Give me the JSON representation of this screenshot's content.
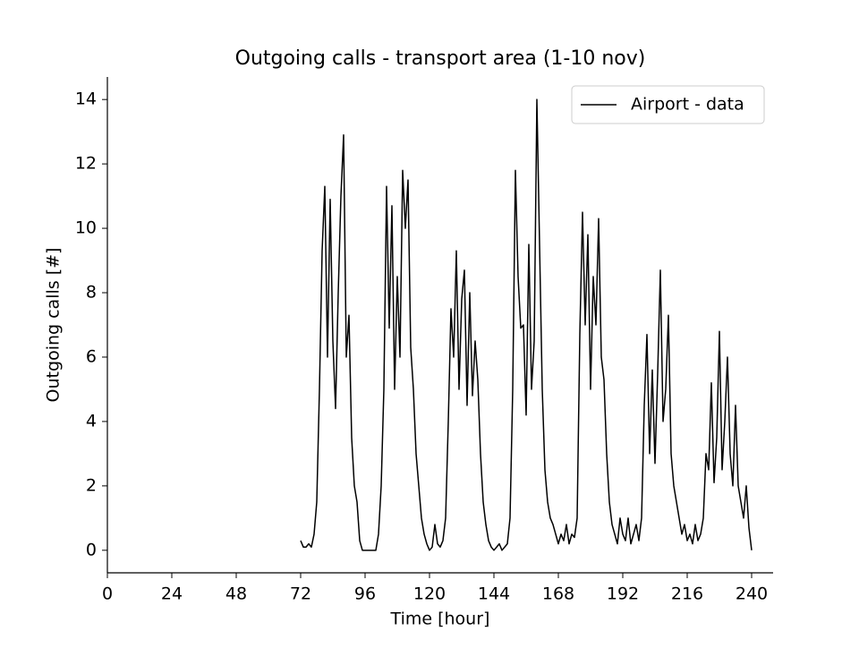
{
  "chart_data": {
    "type": "line",
    "title": "Outgoing calls - transport area (1-10 nov)",
    "x_label": "Time [hour]",
    "y_label": "Outgoing calls [#]",
    "x": [
      72,
      73,
      74,
      75,
      76,
      77,
      78,
      79,
      80,
      81,
      82,
      83,
      84,
      85,
      86,
      87,
      88,
      89,
      90,
      91,
      92,
      93,
      94,
      95,
      96,
      97,
      98,
      99,
      100,
      101,
      102,
      103,
      104,
      105,
      106,
      107,
      108,
      109,
      110,
      111,
      112,
      113,
      114,
      115,
      116,
      117,
      118,
      119,
      120,
      121,
      122,
      123,
      124,
      125,
      126,
      127,
      128,
      129,
      130,
      131,
      132,
      133,
      134,
      135,
      136,
      137,
      138,
      139,
      140,
      141,
      142,
      143,
      144,
      145,
      146,
      147,
      148,
      149,
      150,
      151,
      152,
      153,
      154,
      155,
      156,
      157,
      158,
      159,
      160,
      161,
      162,
      163,
      164,
      165,
      166,
      167,
      168,
      169,
      170,
      171,
      172,
      173,
      174,
      175,
      176,
      177,
      178,
      179,
      180,
      181,
      182,
      183,
      184,
      185,
      186,
      187,
      188,
      189,
      190,
      191,
      192,
      193,
      194,
      195,
      196,
      197,
      198,
      199,
      200,
      201,
      202,
      203,
      204,
      205,
      206,
      207,
      208,
      209,
      210,
      211,
      212,
      213,
      214,
      215,
      216,
      217,
      218,
      219,
      220,
      221,
      222,
      223,
      224,
      225,
      226,
      227,
      228,
      229,
      230,
      231,
      232,
      233,
      234,
      235,
      236,
      237,
      238,
      239,
      240
    ],
    "series": [
      {
        "name": "Airport - data",
        "color": "#000000",
        "values": [
          0.3,
          0.1,
          0.1,
          0.2,
          0.1,
          0.5,
          1.5,
          5,
          9.3,
          11.3,
          6,
          10.9,
          6.5,
          4.4,
          8,
          11,
          12.9,
          6,
          7.3,
          3.5,
          2,
          1.5,
          0.3,
          0,
          0,
          0,
          0,
          0,
          0,
          0.5,
          2,
          5,
          11.3,
          6.9,
          10.7,
          5,
          8.5,
          6,
          11.8,
          10,
          11.5,
          6.3,
          5,
          3,
          2,
          1,
          0.5,
          0.2,
          0,
          0.1,
          0.8,
          0.2,
          0.1,
          0.3,
          1,
          4,
          7.5,
          6,
          9.3,
          5,
          7.8,
          8.7,
          4.5,
          8,
          4.8,
          6.5,
          5.3,
          3,
          1.5,
          0.8,
          0.3,
          0.1,
          0,
          0.1,
          0.2,
          0,
          0.1,
          0.2,
          1,
          5,
          11.8,
          8.5,
          6.9,
          7,
          4.2,
          9.5,
          5,
          6.5,
          14,
          9.5,
          5,
          2.5,
          1.5,
          1,
          0.8,
          0.5,
          0.2,
          0.5,
          0.3,
          0.8,
          0.2,
          0.5,
          0.4,
          1,
          6.7,
          10.5,
          7,
          9.8,
          5,
          8.5,
          7,
          10.3,
          6,
          5.3,
          3,
          1.5,
          0.8,
          0.5,
          0.2,
          1,
          0.5,
          0.3,
          1,
          0.2,
          0.5,
          0.8,
          0.3,
          1,
          4.5,
          6.7,
          3,
          5.6,
          2.7,
          5.5,
          8.7,
          4,
          5,
          7.3,
          3,
          2,
          1.5,
          1,
          0.5,
          0.8,
          0.3,
          0.5,
          0.2,
          0.8,
          0.3,
          0.5,
          1,
          3,
          2.5,
          5.2,
          2.1,
          3.5,
          6.8,
          2.5,
          4,
          6,
          3,
          2,
          4.5,
          2,
          1.5,
          1,
          2,
          0.7,
          0
        ]
      }
    ],
    "xlim": [
      0,
      248
    ],
    "ylim": [
      -0.7,
      14.7
    ],
    "xticks": [
      0,
      24,
      48,
      72,
      96,
      120,
      144,
      168,
      192,
      216,
      240
    ],
    "yticks": [
      0,
      2,
      4,
      6,
      8,
      10,
      12,
      14
    ],
    "legend": "upper right"
  }
}
